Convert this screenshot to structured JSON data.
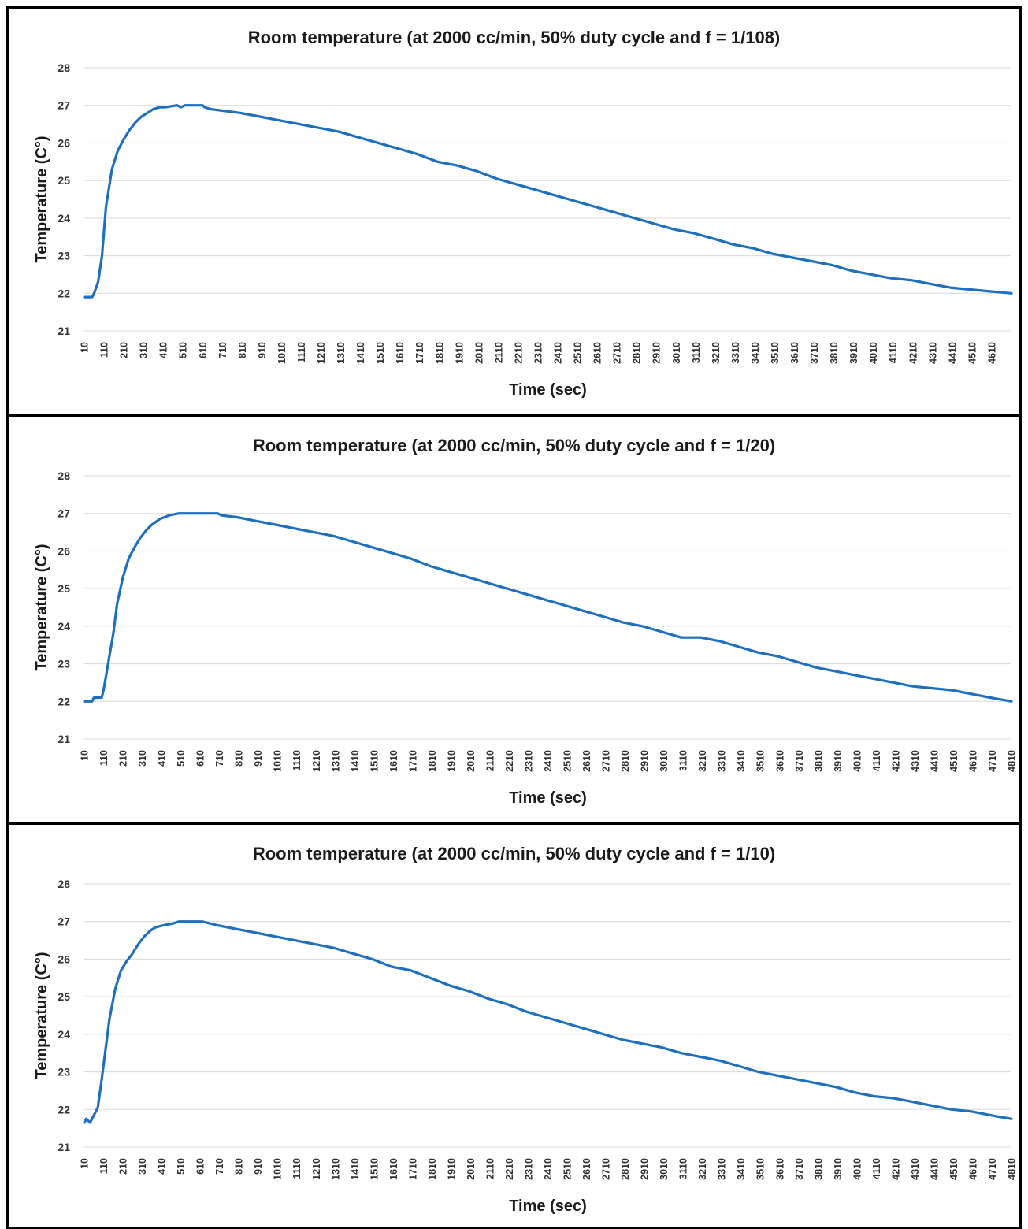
{
  "colors": {
    "series": "#1f6fbf",
    "grid": "#d9d9d9",
    "border": "#000000"
  },
  "chart_data": [
    {
      "type": "line",
      "title": "Room temperature (at 2000 cc/min, 50% duty cycle and f = 1/108)",
      "xlabel": "Time (sec)",
      "ylabel": "Temperature (C°)",
      "ylim": [
        21,
        28
      ],
      "yticks": [
        21,
        22,
        23,
        24,
        25,
        26,
        27,
        28
      ],
      "xlim": [
        10,
        4710
      ],
      "xticks": [
        10,
        110,
        210,
        310,
        410,
        510,
        610,
        710,
        810,
        910,
        1010,
        1110,
        1210,
        1310,
        1410,
        1510,
        1610,
        1710,
        1810,
        1910,
        2010,
        2110,
        2210,
        2310,
        2410,
        2510,
        2610,
        2710,
        2810,
        2910,
        3010,
        3110,
        3210,
        3310,
        3410,
        3510,
        3610,
        3710,
        3810,
        3910,
        4010,
        4110,
        4210,
        4310,
        4410,
        4510,
        4610
      ],
      "grid": true,
      "x": [
        10,
        50,
        60,
        80,
        100,
        120,
        150,
        180,
        210,
        240,
        270,
        300,
        330,
        360,
        390,
        420,
        480,
        500,
        520,
        610,
        620,
        650,
        800,
        900,
        1000,
        1100,
        1200,
        1300,
        1400,
        1500,
        1600,
        1700,
        1800,
        1900,
        2000,
        2100,
        2200,
        2300,
        2400,
        2500,
        2600,
        2700,
        2800,
        2900,
        3000,
        3100,
        3200,
        3300,
        3400,
        3500,
        3600,
        3700,
        3800,
        3900,
        4000,
        4100,
        4200,
        4300,
        4400,
        4500,
        4600,
        4710
      ],
      "values": [
        21.9,
        21.9,
        22.0,
        22.3,
        23.0,
        24.3,
        25.3,
        25.8,
        26.1,
        26.35,
        26.55,
        26.7,
        26.8,
        26.9,
        26.95,
        26.95,
        27.0,
        26.95,
        27.0,
        27.0,
        26.95,
        26.9,
        26.8,
        26.7,
        26.6,
        26.5,
        26.4,
        26.3,
        26.15,
        26.0,
        25.85,
        25.7,
        25.5,
        25.4,
        25.25,
        25.05,
        24.9,
        24.75,
        24.6,
        24.45,
        24.3,
        24.15,
        24.0,
        23.85,
        23.7,
        23.6,
        23.45,
        23.3,
        23.2,
        23.05,
        22.95,
        22.85,
        22.75,
        22.6,
        22.5,
        22.4,
        22.35,
        22.25,
        22.15,
        22.1,
        22.05,
        22.0
      ]
    },
    {
      "type": "line",
      "title": "Room temperature (at 2000 cc/min, 50% duty cycle and f = 1/20)",
      "xlabel": "Time (sec)",
      "ylabel": "Temperature (C°)",
      "ylim": [
        21,
        28
      ],
      "yticks": [
        21,
        22,
        23,
        24,
        25,
        26,
        27,
        28
      ],
      "xlim": [
        10,
        4810
      ],
      "xticks": [
        10,
        110,
        210,
        310,
        410,
        510,
        610,
        710,
        810,
        910,
        1010,
        1110,
        1210,
        1310,
        1410,
        1510,
        1610,
        1710,
        1810,
        1910,
        2010,
        2110,
        2210,
        2310,
        2410,
        2510,
        2610,
        2710,
        2810,
        2910,
        3010,
        3110,
        3210,
        3310,
        3410,
        3510,
        3610,
        3710,
        3810,
        3910,
        4010,
        4110,
        4210,
        4310,
        4410,
        4510,
        4610,
        4710,
        4810
      ],
      "grid": true,
      "x": [
        10,
        50,
        60,
        100,
        110,
        130,
        160,
        180,
        210,
        240,
        270,
        300,
        330,
        360,
        400,
        450,
        500,
        700,
        720,
        800,
        900,
        1000,
        1100,
        1200,
        1300,
        1400,
        1500,
        1600,
        1700,
        1800,
        1900,
        2000,
        2100,
        2200,
        2300,
        2400,
        2500,
        2600,
        2700,
        2800,
        2900,
        3000,
        3100,
        3200,
        3300,
        3400,
        3500,
        3600,
        3700,
        3800,
        3900,
        4000,
        4100,
        4200,
        4300,
        4400,
        4500,
        4600,
        4700,
        4810
      ],
      "values": [
        22.0,
        22.0,
        22.1,
        22.1,
        22.3,
        22.9,
        23.8,
        24.6,
        25.3,
        25.8,
        26.1,
        26.35,
        26.55,
        26.7,
        26.85,
        26.95,
        27.0,
        27.0,
        26.95,
        26.9,
        26.8,
        26.7,
        26.6,
        26.5,
        26.4,
        26.25,
        26.1,
        25.95,
        25.8,
        25.6,
        25.45,
        25.3,
        25.15,
        25.0,
        24.85,
        24.7,
        24.55,
        24.4,
        24.25,
        24.1,
        24.0,
        23.85,
        23.7,
        23.7,
        23.6,
        23.45,
        23.3,
        23.2,
        23.05,
        22.9,
        22.8,
        22.7,
        22.6,
        22.5,
        22.4,
        22.35,
        22.3,
        22.2,
        22.1,
        22.0
      ]
    },
    {
      "type": "line",
      "title": "Room temperature (at 2000 cc/min, 50% duty cycle and f = 1/10)",
      "xlabel": "Time (sec)",
      "ylabel": "Temperature (C°)",
      "ylim": [
        21,
        28
      ],
      "yticks": [
        21,
        22,
        23,
        24,
        25,
        26,
        27,
        28
      ],
      "xlim": [
        10,
        4810
      ],
      "xticks": [
        10,
        110,
        210,
        310,
        410,
        510,
        610,
        710,
        810,
        910,
        1010,
        1110,
        1210,
        1310,
        1410,
        1510,
        1610,
        1710,
        1810,
        1910,
        2010,
        2110,
        2210,
        2310,
        2410,
        2510,
        2610,
        2710,
        2810,
        2910,
        3010,
        3110,
        3210,
        3310,
        3410,
        3510,
        3610,
        3710,
        3810,
        3910,
        4010,
        4110,
        4210,
        4310,
        4410,
        4510,
        4610,
        4710,
        4810
      ],
      "grid": true,
      "x": [
        10,
        20,
        30,
        40,
        60,
        80,
        100,
        120,
        140,
        170,
        200,
        230,
        260,
        290,
        320,
        350,
        380,
        420,
        470,
        500,
        620,
        700,
        800,
        900,
        1000,
        1100,
        1200,
        1300,
        1400,
        1500,
        1600,
        1700,
        1800,
        1900,
        2000,
        2100,
        2200,
        2300,
        2400,
        2500,
        2600,
        2700,
        2800,
        2900,
        3000,
        3100,
        3200,
        3300,
        3400,
        3500,
        3600,
        3700,
        3800,
        3900,
        4000,
        4100,
        4200,
        4300,
        4400,
        4500,
        4600,
        4700,
        4750,
        4810
      ],
      "values": [
        21.65,
        21.75,
        21.7,
        21.65,
        21.85,
        22.05,
        22.8,
        23.6,
        24.4,
        25.2,
        25.7,
        25.95,
        26.15,
        26.4,
        26.6,
        26.75,
        26.85,
        26.9,
        26.95,
        27.0,
        27.0,
        26.9,
        26.8,
        26.7,
        26.6,
        26.5,
        26.4,
        26.3,
        26.15,
        26.0,
        25.8,
        25.7,
        25.5,
        25.3,
        25.15,
        24.95,
        24.8,
        24.6,
        24.45,
        24.3,
        24.15,
        24.0,
        23.85,
        23.75,
        23.65,
        23.5,
        23.4,
        23.3,
        23.15,
        23.0,
        22.9,
        22.8,
        22.7,
        22.6,
        22.45,
        22.35,
        22.3,
        22.2,
        22.1,
        22.0,
        21.95,
        21.85,
        21.8,
        21.75
      ]
    }
  ]
}
